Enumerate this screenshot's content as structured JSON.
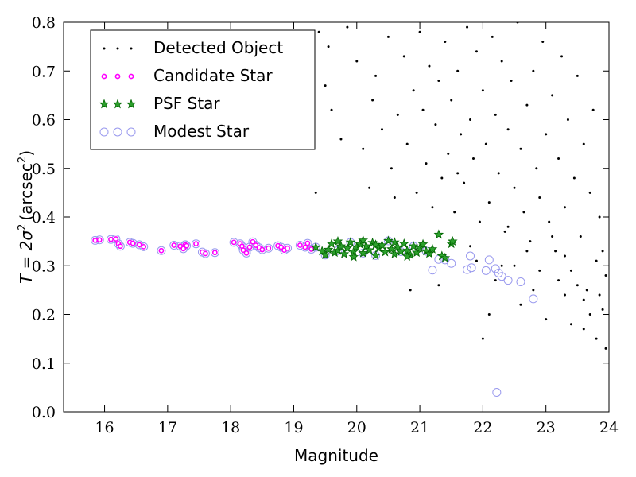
{
  "chart_data": {
    "type": "scatter",
    "title": "",
    "xlabel": "Magnitude",
    "ylabel_main": "T = 2σ",
    "ylabel_unit": "(arcsec",
    "ylabel_sup": "2",
    "ylabel_close": ")",
    "xlim": [
      15.35,
      24.0
    ],
    "ylim": [
      0.0,
      0.8
    ],
    "xticks": [
      16,
      17,
      18,
      19,
      20,
      21,
      22,
      23,
      24
    ],
    "yticks": [
      0.0,
      0.1,
      0.2,
      0.3,
      0.4,
      0.5,
      0.6,
      0.7,
      0.8
    ],
    "xtick_labels": [
      "16",
      "17",
      "18",
      "19",
      "20",
      "21",
      "22",
      "23",
      "24"
    ],
    "ytick_labels": [
      "0.0",
      "0.1",
      "0.2",
      "0.3",
      "0.4",
      "0.5",
      "0.6",
      "0.7",
      "0.8"
    ],
    "grid": false,
    "legend_position": "top-left",
    "legend": [
      {
        "label": "Detected Object",
        "marker": "dot"
      },
      {
        "label": "Candidate Star",
        "marker": "small-circle"
      },
      {
        "label": "PSF Star",
        "marker": "star"
      },
      {
        "label": "Modest Star",
        "marker": "open-circle"
      }
    ],
    "colors": {
      "detected": "#000000",
      "candidate": "#ff00ff",
      "psf_fill": "#2ca02c",
      "psf_edge": "#006400",
      "modest": "#9999ee"
    },
    "series": [
      {
        "name": "Detected Object",
        "points": [
          [
            19.2,
            0.63
          ],
          [
            19.35,
            0.45
          ],
          [
            19.4,
            0.78
          ],
          [
            19.5,
            0.67
          ],
          [
            19.55,
            0.75
          ],
          [
            19.6,
            0.62
          ],
          [
            19.75,
            0.56
          ],
          [
            19.85,
            0.79
          ],
          [
            20.0,
            0.72
          ],
          [
            20.1,
            0.54
          ],
          [
            20.2,
            0.46
          ],
          [
            20.25,
            0.64
          ],
          [
            20.3,
            0.69
          ],
          [
            20.4,
            0.58
          ],
          [
            20.5,
            0.77
          ],
          [
            20.55,
            0.5
          ],
          [
            20.6,
            0.44
          ],
          [
            20.65,
            0.61
          ],
          [
            20.75,
            0.73
          ],
          [
            20.8,
            0.55
          ],
          [
            20.9,
            0.66
          ],
          [
            20.95,
            0.45
          ],
          [
            21.0,
            0.78
          ],
          [
            21.05,
            0.62
          ],
          [
            21.1,
            0.51
          ],
          [
            21.15,
            0.71
          ],
          [
            21.2,
            0.42
          ],
          [
            21.25,
            0.59
          ],
          [
            21.3,
            0.68
          ],
          [
            21.35,
            0.48
          ],
          [
            21.4,
            0.76
          ],
          [
            21.45,
            0.53
          ],
          [
            21.5,
            0.64
          ],
          [
            21.55,
            0.41
          ],
          [
            21.6,
            0.7
          ],
          [
            21.65,
            0.57
          ],
          [
            21.7,
            0.47
          ],
          [
            21.75,
            0.79
          ],
          [
            21.8,
            0.6
          ],
          [
            21.85,
            0.52
          ],
          [
            21.9,
            0.74
          ],
          [
            21.95,
            0.39
          ],
          [
            22.0,
            0.66
          ],
          [
            22.05,
            0.55
          ],
          [
            22.1,
            0.43
          ],
          [
            22.15,
            0.77
          ],
          [
            22.2,
            0.61
          ],
          [
            22.25,
            0.49
          ],
          [
            22.3,
            0.72
          ],
          [
            22.35,
            0.37
          ],
          [
            22.4,
            0.58
          ],
          [
            22.45,
            0.68
          ],
          [
            22.5,
            0.46
          ],
          [
            22.55,
            0.8
          ],
          [
            22.6,
            0.54
          ],
          [
            22.65,
            0.41
          ],
          [
            22.7,
            0.63
          ],
          [
            22.75,
            0.35
          ],
          [
            22.8,
            0.7
          ],
          [
            22.85,
            0.5
          ],
          [
            22.9,
            0.44
          ],
          [
            22.95,
            0.76
          ],
          [
            23.0,
            0.57
          ],
          [
            23.05,
            0.39
          ],
          [
            23.1,
            0.65
          ],
          [
            23.15,
            0.33
          ],
          [
            23.2,
            0.52
          ],
          [
            23.25,
            0.73
          ],
          [
            23.3,
            0.42
          ],
          [
            23.35,
            0.6
          ],
          [
            23.4,
            0.29
          ],
          [
            23.45,
            0.48
          ],
          [
            23.5,
            0.69
          ],
          [
            23.55,
            0.36
          ],
          [
            23.6,
            0.55
          ],
          [
            23.65,
            0.25
          ],
          [
            23.7,
            0.45
          ],
          [
            23.75,
            0.62
          ],
          [
            23.8,
            0.31
          ],
          [
            23.85,
            0.4
          ],
          [
            23.9,
            0.21
          ],
          [
            23.95,
            0.28
          ],
          [
            21.3,
            0.26
          ],
          [
            21.6,
            0.49
          ],
          [
            21.8,
            0.34
          ],
          [
            22.0,
            0.15
          ],
          [
            22.1,
            0.2
          ],
          [
            22.3,
            0.3
          ],
          [
            22.6,
            0.22
          ],
          [
            22.8,
            0.25
          ],
          [
            23.0,
            0.19
          ],
          [
            23.2,
            0.27
          ],
          [
            23.4,
            0.18
          ],
          [
            23.6,
            0.23
          ],
          [
            23.8,
            0.15
          ],
          [
            23.95,
            0.13
          ],
          [
            22.4,
            0.38
          ],
          [
            22.7,
            0.33
          ],
          [
            23.1,
            0.36
          ],
          [
            23.3,
            0.32
          ],
          [
            23.5,
            0.26
          ],
          [
            23.7,
            0.2
          ],
          [
            23.9,
            0.33
          ],
          [
            22.2,
            0.27
          ],
          [
            22.5,
            0.3
          ],
          [
            22.9,
            0.29
          ],
          [
            23.3,
            0.24
          ],
          [
            23.6,
            0.17
          ],
          [
            23.85,
            0.24
          ],
          [
            20.85,
            0.25
          ],
          [
            21.35,
            0.32
          ],
          [
            21.9,
            0.31
          ]
        ]
      },
      {
        "name": "Candidate Star",
        "points": [
          [
            15.85,
            0.352
          ],
          [
            15.92,
            0.353
          ],
          [
            16.1,
            0.354
          ],
          [
            16.18,
            0.355
          ],
          [
            16.22,
            0.345
          ],
          [
            16.25,
            0.34
          ],
          [
            16.4,
            0.348
          ],
          [
            16.45,
            0.346
          ],
          [
            16.55,
            0.343
          ],
          [
            16.62,
            0.339
          ],
          [
            16.9,
            0.331
          ],
          [
            17.1,
            0.342
          ],
          [
            17.2,
            0.34
          ],
          [
            17.25,
            0.335
          ],
          [
            17.28,
            0.343
          ],
          [
            17.3,
            0.341
          ],
          [
            17.45,
            0.345
          ],
          [
            17.55,
            0.328
          ],
          [
            17.6,
            0.325
          ],
          [
            17.75,
            0.327
          ],
          [
            18.05,
            0.348
          ],
          [
            18.15,
            0.345
          ],
          [
            18.18,
            0.34
          ],
          [
            18.2,
            0.332
          ],
          [
            18.25,
            0.326
          ],
          [
            18.3,
            0.338
          ],
          [
            18.35,
            0.349
          ],
          [
            18.4,
            0.342
          ],
          [
            18.45,
            0.337
          ],
          [
            18.5,
            0.333
          ],
          [
            18.6,
            0.336
          ],
          [
            18.75,
            0.341
          ],
          [
            18.8,
            0.338
          ],
          [
            18.85,
            0.332
          ],
          [
            18.9,
            0.336
          ],
          [
            19.1,
            0.342
          ],
          [
            19.18,
            0.338
          ],
          [
            19.22,
            0.346
          ],
          [
            19.28,
            0.334
          ]
        ]
      },
      {
        "name": "PSF Star",
        "points": [
          [
            19.35,
            0.338
          ],
          [
            19.45,
            0.33
          ],
          [
            19.5,
            0.322
          ],
          [
            19.55,
            0.333
          ],
          [
            19.6,
            0.345
          ],
          [
            19.65,
            0.327
          ],
          [
            19.7,
            0.331
          ],
          [
            19.75,
            0.34
          ],
          [
            19.8,
            0.324
          ],
          [
            19.85,
            0.336
          ],
          [
            19.9,
            0.348
          ],
          [
            19.95,
            0.329
          ],
          [
            20.0,
            0.338
          ],
          [
            20.05,
            0.344
          ],
          [
            20.1,
            0.326
          ],
          [
            20.15,
            0.34
          ],
          [
            20.2,
            0.332
          ],
          [
            20.25,
            0.347
          ],
          [
            20.3,
            0.321
          ],
          [
            20.35,
            0.336
          ],
          [
            20.4,
            0.342
          ],
          [
            20.45,
            0.328
          ],
          [
            20.5,
            0.351
          ],
          [
            20.55,
            0.334
          ],
          [
            20.6,
            0.324
          ],
          [
            20.65,
            0.338
          ],
          [
            20.7,
            0.329
          ],
          [
            20.75,
            0.345
          ],
          [
            20.8,
            0.331
          ],
          [
            20.85,
            0.322
          ],
          [
            20.9,
            0.34
          ],
          [
            20.95,
            0.327
          ],
          [
            21.0,
            0.336
          ],
          [
            21.05,
            0.344
          ],
          [
            21.1,
            0.33
          ],
          [
            21.15,
            0.325
          ],
          [
            21.2,
            0.334
          ],
          [
            21.3,
            0.364
          ],
          [
            21.35,
            0.32
          ],
          [
            21.4,
            0.316
          ],
          [
            21.5,
            0.345
          ],
          [
            21.52,
            0.35
          ],
          [
            19.7,
            0.35
          ],
          [
            20.1,
            0.352
          ],
          [
            20.6,
            0.348
          ],
          [
            20.3,
            0.343
          ],
          [
            20.8,
            0.319
          ],
          [
            19.95,
            0.318
          ]
        ]
      },
      {
        "name": "Modest Star",
        "points": [
          [
            15.85,
            0.352
          ],
          [
            15.92,
            0.353
          ],
          [
            16.1,
            0.354
          ],
          [
            16.18,
            0.355
          ],
          [
            16.22,
            0.345
          ],
          [
            16.25,
            0.34
          ],
          [
            16.4,
            0.348
          ],
          [
            16.45,
            0.346
          ],
          [
            16.55,
            0.343
          ],
          [
            16.62,
            0.339
          ],
          [
            16.9,
            0.331
          ],
          [
            17.1,
            0.342
          ],
          [
            17.2,
            0.34
          ],
          [
            17.25,
            0.335
          ],
          [
            17.28,
            0.343
          ],
          [
            17.3,
            0.341
          ],
          [
            17.45,
            0.345
          ],
          [
            17.55,
            0.328
          ],
          [
            17.6,
            0.325
          ],
          [
            17.75,
            0.327
          ],
          [
            18.05,
            0.348
          ],
          [
            18.15,
            0.345
          ],
          [
            18.18,
            0.34
          ],
          [
            18.2,
            0.332
          ],
          [
            18.25,
            0.326
          ],
          [
            18.3,
            0.338
          ],
          [
            18.35,
            0.349
          ],
          [
            18.4,
            0.342
          ],
          [
            18.45,
            0.337
          ],
          [
            18.5,
            0.333
          ],
          [
            18.6,
            0.336
          ],
          [
            18.75,
            0.341
          ],
          [
            18.8,
            0.338
          ],
          [
            18.85,
            0.332
          ],
          [
            18.9,
            0.336
          ],
          [
            19.1,
            0.342
          ],
          [
            19.18,
            0.338
          ],
          [
            19.22,
            0.346
          ],
          [
            19.28,
            0.334
          ],
          [
            19.35,
            0.338
          ],
          [
            19.5,
            0.322
          ],
          [
            19.7,
            0.331
          ],
          [
            19.9,
            0.348
          ],
          [
            20.1,
            0.326
          ],
          [
            20.3,
            0.321
          ],
          [
            20.5,
            0.351
          ],
          [
            20.7,
            0.329
          ],
          [
            20.9,
            0.34
          ],
          [
            21.1,
            0.33
          ],
          [
            21.2,
            0.291
          ],
          [
            21.3,
            0.313
          ],
          [
            21.4,
            0.312
          ],
          [
            21.5,
            0.305
          ],
          [
            21.75,
            0.292
          ],
          [
            21.8,
            0.32
          ],
          [
            21.82,
            0.296
          ],
          [
            22.05,
            0.29
          ],
          [
            22.1,
            0.312
          ],
          [
            22.2,
            0.294
          ],
          [
            22.25,
            0.285
          ],
          [
            22.3,
            0.278
          ],
          [
            22.4,
            0.27
          ],
          [
            22.6,
            0.267
          ],
          [
            22.8,
            0.232
          ],
          [
            22.22,
            0.04
          ]
        ]
      }
    ]
  }
}
